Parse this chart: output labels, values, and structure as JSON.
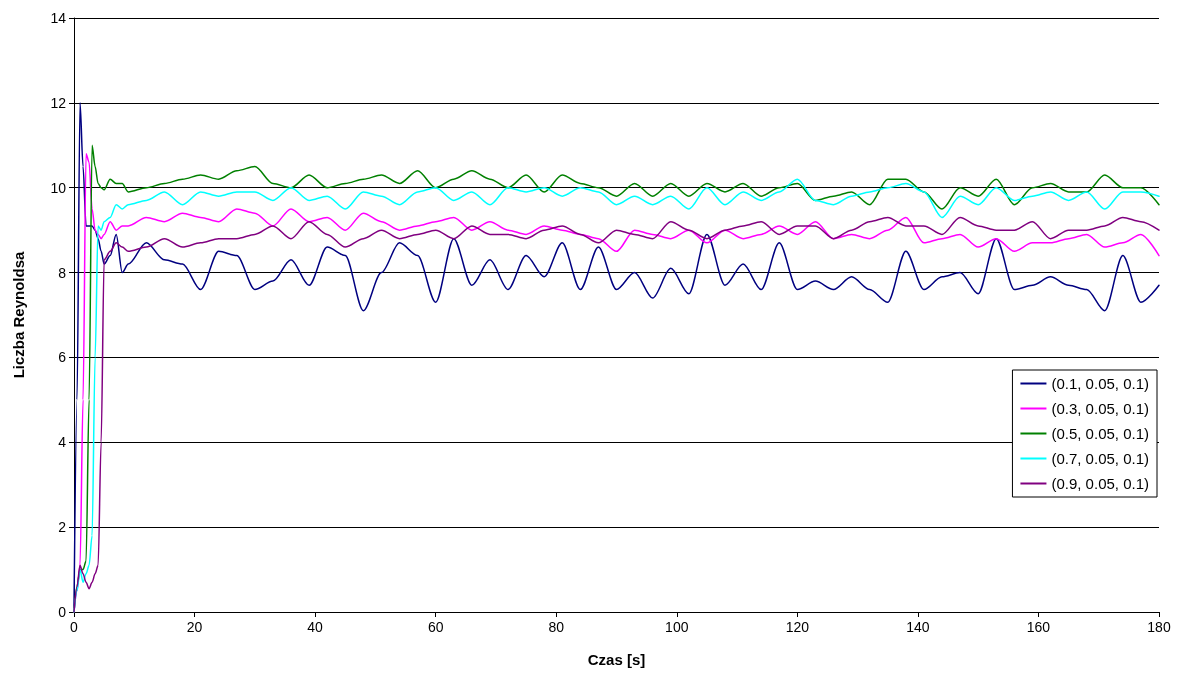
{
  "chart_data": {
    "type": "line",
    "xlabel": "Czas [s]",
    "ylabel": "Liczba Reynoldsa",
    "x": [
      0,
      0.5,
      1,
      1.5,
      2,
      2.5,
      3,
      3.5,
      4,
      4.5,
      5,
      6,
      7,
      8,
      9,
      12,
      15,
      18,
      21,
      24,
      27,
      30,
      33,
      36,
      39,
      42,
      45,
      48,
      51,
      54,
      57,
      60,
      63,
      66,
      69,
      72,
      75,
      78,
      81,
      84,
      87,
      90,
      93,
      96,
      99,
      102,
      105,
      108,
      111,
      114,
      117,
      120,
      123,
      126,
      129,
      132,
      135,
      138,
      141,
      144,
      147,
      150,
      153,
      156,
      159,
      162,
      165,
      168,
      171,
      174,
      177,
      180
    ],
    "series": [
      {
        "name": "(0.1, 0.05, 0.1)",
        "color": "#000080",
        "values": [
          0.1,
          5,
          12,
          10.5,
          9.1,
          9.1,
          9.1,
          9.0,
          8.8,
          8.5,
          8.2,
          8.4,
          8.9,
          8.0,
          8.2,
          8.7,
          8.3,
          8.2,
          7.6,
          8.5,
          8.4,
          7.6,
          7.8,
          8.3,
          7.7,
          8.6,
          8.4,
          7.1,
          8.0,
          8.7,
          8.4,
          7.3,
          8.8,
          7.7,
          8.3,
          7.6,
          8.4,
          7.9,
          8.7,
          7.6,
          8.6,
          7.6,
          8.0,
          7.4,
          8.1,
          7.5,
          8.9,
          7.7,
          8.2,
          7.6,
          8.7,
          7.6,
          7.8,
          7.6,
          7.9,
          7.6,
          7.3,
          8.5,
          7.6,
          7.9,
          8.0,
          7.5,
          8.8,
          7.6,
          7.7,
          7.9,
          7.7,
          7.6,
          7.1,
          8.4,
          7.3,
          7.7
        ]
      },
      {
        "name": "(0.3, 0.05, 0.1)",
        "color": "#ff00ff",
        "values": [
          0,
          0.5,
          1.1,
          5,
          10.8,
          10.6,
          9.5,
          9.0,
          8.9,
          8.8,
          8.9,
          9.2,
          9.0,
          9.1,
          9.1,
          9.3,
          9.2,
          9.4,
          9.3,
          9.2,
          9.5,
          9.4,
          9.1,
          9.5,
          9.2,
          9.3,
          9.0,
          9.4,
          9.2,
          9.0,
          9.1,
          9.2,
          9.3,
          9.0,
          9.2,
          9.0,
          8.9,
          9.1,
          9.0,
          8.9,
          8.8,
          8.5,
          9.0,
          8.9,
          8.8,
          9.0,
          8.7,
          9.0,
          8.8,
          8.9,
          9.1,
          8.9,
          9.2,
          8.8,
          8.9,
          8.8,
          9.0,
          9.3,
          8.7,
          8.8,
          8.9,
          8.6,
          8.8,
          8.5,
          8.7,
          8.7,
          8.8,
          8.9,
          8.6,
          8.7,
          8.9,
          8.4
        ]
      },
      {
        "name": "(0.5, 0.05, 0.1)",
        "color": "#008000",
        "values": [
          0,
          0.6,
          1.0,
          1.0,
          1.2,
          5,
          11.0,
          10.5,
          10.1,
          10.0,
          9.95,
          10.2,
          10.1,
          10.1,
          9.9,
          10.0,
          10.1,
          10.2,
          10.3,
          10.2,
          10.4,
          10.5,
          10.1,
          10.0,
          10.3,
          10.0,
          10.1,
          10.2,
          10.3,
          10.1,
          10.4,
          10.0,
          10.2,
          10.4,
          10.2,
          10.0,
          10.3,
          9.9,
          10.3,
          10.1,
          10.0,
          9.8,
          10.1,
          9.8,
          10.1,
          9.8,
          10.1,
          9.9,
          10.1,
          9.8,
          10.0,
          10.1,
          9.7,
          9.8,
          9.9,
          9.6,
          10.2,
          10.2,
          9.9,
          9.5,
          10.0,
          9.8,
          10.2,
          9.6,
          10.0,
          10.1,
          9.9,
          9.9,
          10.3,
          10.0,
          10.0,
          9.6
        ]
      },
      {
        "name": "(0.7, 0.05, 0.1)",
        "color": "#00ffff",
        "values": [
          0,
          0.5,
          1.0,
          0.7,
          0.9,
          1.1,
          1.8,
          6,
          9.1,
          9.0,
          9.2,
          9.3,
          9.6,
          9.5,
          9.6,
          9.7,
          9.9,
          9.6,
          9.9,
          9.8,
          9.9,
          9.9,
          9.7,
          10.0,
          9.7,
          9.8,
          9.5,
          9.9,
          9.8,
          9.6,
          9.9,
          10.0,
          9.7,
          9.9,
          9.6,
          10.0,
          9.9,
          10.0,
          9.8,
          10.0,
          9.9,
          9.6,
          9.8,
          9.6,
          9.8,
          9.5,
          10.0,
          9.6,
          9.9,
          9.7,
          9.9,
          10.2,
          9.7,
          9.6,
          9.8,
          9.9,
          10.0,
          10.1,
          9.9,
          9.3,
          9.8,
          9.6,
          10.0,
          9.7,
          9.8,
          9.9,
          9.7,
          9.9,
          9.5,
          9.9,
          9.9,
          9.8
        ]
      },
      {
        "name": "(0.9, 0.05, 0.1)",
        "color": "#800080",
        "values": [
          0,
          0.6,
          1.1,
          0.9,
          0.7,
          0.55,
          0.7,
          0.9,
          1.1,
          4,
          8.3,
          8.5,
          8.7,
          8.6,
          8.5,
          8.6,
          8.8,
          8.6,
          8.7,
          8.8,
          8.8,
          8.9,
          9.1,
          8.8,
          9.2,
          8.9,
          8.6,
          8.8,
          9.0,
          8.8,
          8.9,
          9.0,
          8.8,
          9.1,
          8.9,
          8.9,
          8.8,
          9.0,
          9.1,
          8.9,
          8.7,
          9.0,
          8.9,
          8.8,
          9.2,
          9.0,
          8.8,
          9.0,
          9.1,
          9.2,
          8.9,
          9.1,
          9.1,
          8.8,
          9.0,
          9.2,
          9.3,
          9.1,
          9.1,
          8.9,
          9.3,
          9.1,
          9.0,
          9.0,
          9.2,
          8.8,
          9.0,
          9.0,
          9.1,
          9.3,
          9.2,
          9.0
        ]
      }
    ],
    "xlim": [
      0,
      180
    ],
    "xticks": [
      0,
      20,
      40,
      60,
      80,
      100,
      120,
      140,
      160,
      180
    ],
    "ylim": [
      0,
      14
    ],
    "yticks": [
      0,
      2,
      4,
      6,
      8,
      10,
      12,
      14
    ],
    "grid": "y",
    "legend": "right",
    "marker": "none"
  }
}
